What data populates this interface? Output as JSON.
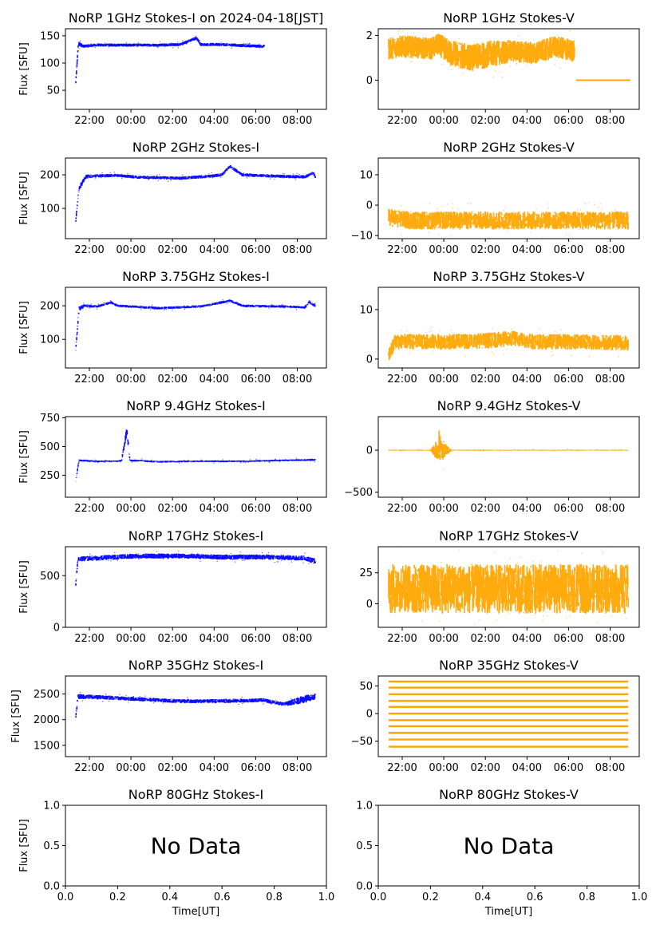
{
  "figure": {
    "date_label": "2024-04-18[JST]",
    "common_x_ticks": [
      "22:00",
      "00:00",
      "02:00",
      "04:00",
      "06:00",
      "08:00"
    ],
    "colors": {
      "stokes_i": "#0000ff",
      "stokes_v": "#ffa500"
    }
  },
  "chart_data": [
    {
      "id": "i1",
      "type": "scatter",
      "title": "NoRP 1GHz Stokes-I on 2024-04-18[JST]",
      "ylabel": "Flux [SFU]",
      "xlabel": "",
      "yticks": [
        50,
        100,
        150
      ],
      "ylim": [
        15,
        163
      ],
      "series": [
        {
          "x": [
            0.0,
            0.12,
            0.4,
            1.0,
            2.0,
            3.0,
            4.0,
            5.0,
            5.8,
            6.0,
            7.0,
            8.0,
            8.85,
            9.0
          ],
          "y": [
            65,
            135,
            131,
            133,
            133,
            133,
            133,
            134,
            146,
            134,
            134,
            132,
            131,
            131
          ],
          "spread": [
            5,
            5,
            3,
            3,
            3,
            3,
            3,
            3,
            3,
            3,
            3,
            3,
            3,
            3
          ]
        }
      ],
      "x_extent": [
        0,
        9.05
      ]
    },
    {
      "id": "v1",
      "type": "scatter",
      "title": "NoRP 1GHz Stokes-V",
      "ylabel": "",
      "xlabel": "",
      "yticks": [
        0,
        2
      ],
      "ylim": [
        -1.3,
        2.3
      ],
      "series": [
        {
          "x": [
            0.0,
            0.5,
            1.0,
            2.0,
            2.4,
            3.0,
            4.0,
            5.0,
            6.0,
            7.0,
            8.0,
            8.9
          ],
          "y": [
            1.4,
            1.5,
            1.5,
            1.4,
            1.6,
            1.2,
            1.0,
            1.2,
            1.3,
            1.2,
            1.5,
            1.3
          ],
          "spread": [
            0.5,
            0.5,
            0.5,
            0.5,
            0.5,
            0.6,
            0.6,
            0.6,
            0.5,
            0.5,
            0.5,
            0.5
          ]
        }
      ],
      "x_extent": [
        0,
        8.92
      ],
      "flat_segments": [
        [
          9.0,
          11.6,
          0
        ]
      ]
    },
    {
      "id": "i2",
      "type": "scatter",
      "title": "NoRP 2GHz Stokes-I",
      "ylabel": "Flux [SFU]",
      "xlabel": "",
      "yticks": [
        100,
        200
      ],
      "ylim": [
        10,
        250
      ],
      "series": [
        {
          "x": [
            0.0,
            0.15,
            0.5,
            1.0,
            2.0,
            3.0,
            5.0,
            6.5,
            7.0,
            7.4,
            8.0,
            10.0,
            11.0,
            11.4,
            11.5
          ],
          "y": [
            65,
            160,
            195,
            197,
            198,
            193,
            190,
            196,
            200,
            225,
            200,
            195,
            194,
            205,
            195
          ],
          "spread": [
            6,
            8,
            6,
            5,
            5,
            5,
            5,
            5,
            5,
            5,
            5,
            5,
            5,
            5,
            6
          ]
        }
      ],
      "x_extent": [
        0,
        11.5
      ]
    },
    {
      "id": "v2",
      "type": "scatter",
      "title": "NoRP 2GHz Stokes-V",
      "ylabel": "",
      "xlabel": "",
      "yticks": [
        -10,
        0,
        10
      ],
      "ylim": [
        -11,
        15.5
      ],
      "series": [
        {
          "x": [
            0.0,
            1.0,
            3.0,
            5.0,
            7.0,
            9.0,
            11.5
          ],
          "y": [
            -4,
            -5,
            -5,
            -5,
            -5,
            -5,
            -5
          ],
          "spread": [
            3,
            3,
            3,
            3,
            3,
            3,
            3
          ]
        }
      ],
      "x_extent": [
        0,
        11.5
      ]
    },
    {
      "id": "i3",
      "type": "scatter",
      "title": "NoRP 3.75GHz Stokes-I",
      "ylabel": "Flux [SFU]",
      "xlabel": "",
      "yticks": [
        100,
        200
      ],
      "ylim": [
        15,
        255
      ],
      "series": [
        {
          "x": [
            0.0,
            0.15,
            0.4,
            1.0,
            1.7,
            2.0,
            4.0,
            6.0,
            7.4,
            8.0,
            10.0,
            11.0,
            11.2,
            11.5
          ],
          "y": [
            70,
            190,
            200,
            198,
            210,
            200,
            193,
            198,
            215,
            200,
            198,
            195,
            212,
            200
          ],
          "spread": [
            6,
            8,
            5,
            4,
            4,
            4,
            4,
            4,
            4,
            4,
            4,
            4,
            4,
            5
          ]
        }
      ],
      "x_extent": [
        0,
        11.5
      ]
    },
    {
      "id": "v3",
      "type": "scatter",
      "title": "NoRP 3.75GHz Stokes-V",
      "ylabel": "",
      "xlabel": "",
      "yticks": [
        0,
        10
      ],
      "ylim": [
        -1.8,
        14.5
      ],
      "series": [
        {
          "x": [
            0.0,
            0.3,
            1.0,
            3.0,
            5.0,
            6.0,
            7.0,
            9.0,
            11.5
          ],
          "y": [
            1.0,
            3.5,
            3.5,
            3.5,
            3.8,
            4.2,
            3.5,
            3.5,
            3.3
          ],
          "spread": [
            1.5,
            1.6,
            1.6,
            1.6,
            1.6,
            1.6,
            1.6,
            1.6,
            1.6
          ]
        }
      ],
      "x_extent": [
        0,
        11.5
      ]
    },
    {
      "id": "i4",
      "type": "scatter",
      "title": "NoRP 9.4GHz Stokes-I",
      "ylabel": "Flux [SFU]",
      "xlabel": "",
      "yticks": [
        250,
        500,
        750
      ],
      "ylim": [
        60,
        760
      ],
      "series": [
        {
          "x": [
            0.0,
            0.15,
            1.0,
            2.0,
            2.2,
            2.45,
            2.6,
            4.0,
            6.0,
            8.0,
            10.0,
            11.5
          ],
          "y": [
            200,
            380,
            372,
            372,
            380,
            640,
            380,
            368,
            372,
            372,
            380,
            385
          ],
          "spread": [
            8,
            10,
            8,
            8,
            10,
            40,
            10,
            8,
            8,
            8,
            8,
            10
          ]
        }
      ],
      "x_extent": [
        0,
        11.5
      ]
    },
    {
      "id": "v4",
      "type": "scatter",
      "title": "NoRP 9.4GHz Stokes-V",
      "ylabel": "",
      "xlabel": "",
      "yticks": [
        -500,
        0
      ],
      "ylim": [
        -560,
        400
      ],
      "series": [
        {
          "x": [
            0.0,
            2.0,
            2.4,
            2.45,
            2.5,
            3.0,
            11.5
          ],
          "y": [
            0,
            0,
            0,
            50,
            0,
            0,
            0
          ],
          "spread": [
            6,
            6,
            150,
            330,
            150,
            6,
            6
          ]
        }
      ],
      "x_extent": [
        0,
        11.5
      ]
    },
    {
      "id": "i5",
      "type": "scatter",
      "title": "NoRP 17GHz Stokes-I",
      "ylabel": "Flux [SFU]",
      "xlabel": "",
      "yticks": [
        0,
        500
      ],
      "ylim": [
        0,
        780
      ],
      "series": [
        {
          "x": [
            0.0,
            0.1,
            1.0,
            3.0,
            5.0,
            7.0,
            9.0,
            11.0,
            11.5
          ],
          "y": [
            420,
            660,
            670,
            690,
            690,
            680,
            680,
            670,
            640
          ],
          "spread": [
            20,
            25,
            25,
            25,
            25,
            25,
            25,
            25,
            30
          ]
        }
      ],
      "x_extent": [
        0,
        11.5
      ]
    },
    {
      "id": "v5",
      "type": "scatter",
      "title": "NoRP 17GHz Stokes-V",
      "ylabel": "",
      "xlabel": "",
      "yticks": [
        0,
        25
      ],
      "ylim": [
        -19,
        46
      ],
      "series": [
        {
          "x": [
            0.0,
            2.0,
            4.0,
            6.0,
            8.0,
            10.0,
            11.5
          ],
          "y": [
            12,
            12,
            12,
            12,
            12,
            12,
            12
          ],
          "spread": [
            20,
            20,
            20,
            20,
            20,
            20,
            20
          ]
        }
      ],
      "x_extent": [
        0,
        11.5
      ]
    },
    {
      "id": "i6",
      "type": "scatter",
      "title": "NoRP 35GHz Stokes-I",
      "ylabel": "Flux [SFU]",
      "xlabel": "",
      "yticks": [
        1500,
        2000,
        2500
      ],
      "ylim": [
        1280,
        2850
      ],
      "series": [
        {
          "x": [
            0.0,
            0.1,
            1.0,
            3.0,
            5.0,
            7.0,
            9.0,
            10.0,
            11.0,
            11.5
          ],
          "y": [
            2050,
            2450,
            2440,
            2400,
            2360,
            2360,
            2380,
            2300,
            2400,
            2450
          ],
          "spread": [
            40,
            50,
            40,
            40,
            40,
            40,
            40,
            40,
            80,
            60
          ]
        }
      ],
      "x_extent": [
        0,
        11.5
      ]
    },
    {
      "id": "v6",
      "type": "scatter",
      "title": "NoRP 35GHz Stokes-V",
      "ylabel": "",
      "xlabel": "",
      "yticks": [
        -50,
        0,
        50
      ],
      "ylim": [
        -78,
        68
      ],
      "series": [
        {
          "levels": [
            -60,
            -47,
            -35,
            -23,
            -12,
            0,
            12,
            23,
            35,
            47,
            58
          ]
        }
      ],
      "x_extent": [
        0,
        11.5
      ]
    },
    {
      "id": "i7",
      "type": "scatter",
      "title": "NoRP 80GHz Stokes-I",
      "ylabel": "Flux [SFU]",
      "xlabel": "Time[UT]",
      "yticks": [
        0.0,
        0.5,
        1.0
      ],
      "xticks": [
        0.0,
        0.2,
        0.4,
        0.6,
        0.8,
        1.0
      ],
      "ylim": [
        0,
        1
      ],
      "xlim": [
        0,
        1
      ],
      "annotation": "No Data",
      "series": []
    },
    {
      "id": "v7",
      "type": "scatter",
      "title": "NoRP 80GHz Stokes-V",
      "ylabel": "",
      "xlabel": "Time[UT]",
      "yticks": [
        0.0,
        0.5,
        1.0
      ],
      "xticks": [
        0.0,
        0.2,
        0.4,
        0.6,
        0.8,
        1.0
      ],
      "ylim": [
        0,
        1
      ],
      "xlim": [
        0,
        1
      ],
      "annotation": "No Data",
      "series": []
    }
  ]
}
